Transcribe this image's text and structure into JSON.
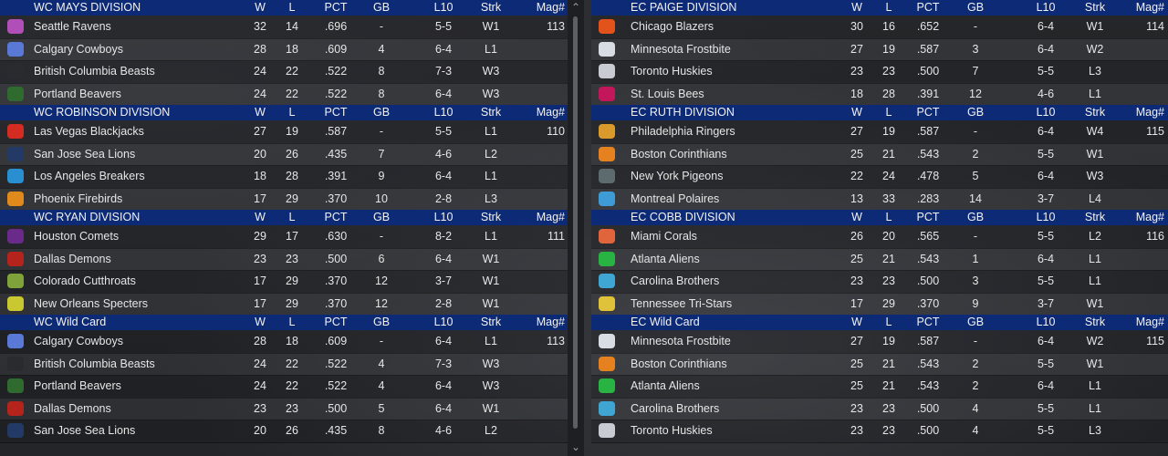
{
  "column_headers": {
    "w": "W",
    "l": "L",
    "pct": "PCT",
    "gb": "GB",
    "l10": "L10",
    "strk": "Strk",
    "mag": "Mag#"
  },
  "left": [
    {
      "division": "WC MAYS DIVISION",
      "teams": [
        {
          "name": "Seattle Ravens",
          "logo_icon": "ravens-logo-icon",
          "logo_color": "#b04fb8",
          "w": "32",
          "l": "14",
          "pct": ".696",
          "gb": "-",
          "l10": "5-5",
          "strk": "W1",
          "mag": "113"
        },
        {
          "name": "Calgary Cowboys",
          "logo_icon": "cowboy-hat-logo-icon",
          "logo_color": "#5a79d6",
          "w": "28",
          "l": "18",
          "pct": ".609",
          "gb": "4",
          "l10": "6-4",
          "strk": "L1",
          "mag": ""
        },
        {
          "name": "British Columbia Beasts",
          "logo_icon": "beasts-logo-icon",
          "logo_color": "#2a2b2e",
          "w": "24",
          "l": "22",
          "pct": ".522",
          "gb": "8",
          "l10": "7-3",
          "strk": "W3",
          "mag": ""
        },
        {
          "name": "Portland Beavers",
          "logo_icon": "beaver-logo-icon",
          "logo_color": "#2f6b2f",
          "w": "24",
          "l": "22",
          "pct": ".522",
          "gb": "8",
          "l10": "6-4",
          "strk": "W3",
          "mag": ""
        }
      ]
    },
    {
      "division": "WC ROBINSON DIVISION",
      "teams": [
        {
          "name": "Las Vegas Blackjacks",
          "logo_icon": "spade-logo-icon",
          "logo_color": "#d42b22",
          "w": "27",
          "l": "19",
          "pct": ".587",
          "gb": "-",
          "l10": "5-5",
          "strk": "L1",
          "mag": "110"
        },
        {
          "name": "San Jose Sea Lions",
          "logo_icon": "sea-lion-logo-icon",
          "logo_color": "#233a66",
          "w": "20",
          "l": "26",
          "pct": ".435",
          "gb": "7",
          "l10": "4-6",
          "strk": "L2",
          "mag": ""
        },
        {
          "name": "Los Angeles Breakers",
          "logo_icon": "wave-logo-icon",
          "logo_color": "#2a8fd0",
          "w": "18",
          "l": "28",
          "pct": ".391",
          "gb": "9",
          "l10": "6-4",
          "strk": "L1",
          "mag": ""
        },
        {
          "name": "Phoenix Firebirds",
          "logo_icon": "firebird-logo-icon",
          "logo_color": "#e08a1c",
          "w": "17",
          "l": "29",
          "pct": ".370",
          "gb": "10",
          "l10": "2-8",
          "strk": "L3",
          "mag": ""
        }
      ]
    },
    {
      "division": "WC RYAN DIVISION",
      "teams": [
        {
          "name": "Houston Comets",
          "logo_icon": "comet-logo-icon",
          "logo_color": "#6a2a8a",
          "w": "29",
          "l": "17",
          "pct": ".630",
          "gb": "-",
          "l10": "8-2",
          "strk": "L1",
          "mag": "111"
        },
        {
          "name": "Dallas Demons",
          "logo_icon": "demon-logo-icon",
          "logo_color": "#b5241c",
          "w": "23",
          "l": "23",
          "pct": ".500",
          "gb": "6",
          "l10": "6-4",
          "strk": "W1",
          "mag": ""
        },
        {
          "name": "Colorado Cutthroats",
          "logo_icon": "fish-logo-icon",
          "logo_color": "#7fa33a",
          "w": "17",
          "l": "29",
          "pct": ".370",
          "gb": "12",
          "l10": "3-7",
          "strk": "W1",
          "mag": ""
        },
        {
          "name": "New Orleans Specters",
          "logo_icon": "skull-logo-icon",
          "logo_color": "#c9c830",
          "w": "17",
          "l": "29",
          "pct": ".370",
          "gb": "12",
          "l10": "2-8",
          "strk": "W1",
          "mag": ""
        }
      ]
    },
    {
      "division": "WC  Wild Card",
      "teams": [
        {
          "name": "Calgary Cowboys",
          "logo_icon": "cowboy-hat-logo-icon",
          "logo_color": "#5a79d6",
          "w": "28",
          "l": "18",
          "pct": ".609",
          "gb": "-",
          "l10": "6-4",
          "strk": "L1",
          "mag": "113"
        },
        {
          "name": "British Columbia Beasts",
          "logo_icon": "beasts-logo-icon",
          "logo_color": "#2a2b2e",
          "w": "24",
          "l": "22",
          "pct": ".522",
          "gb": "4",
          "l10": "7-3",
          "strk": "W3",
          "mag": ""
        },
        {
          "name": "Portland Beavers",
          "logo_icon": "beaver-logo-icon",
          "logo_color": "#2f6b2f",
          "w": "24",
          "l": "22",
          "pct": ".522",
          "gb": "4",
          "l10": "6-4",
          "strk": "W3",
          "mag": ""
        },
        {
          "name": "Dallas Demons",
          "logo_icon": "demon-logo-icon",
          "logo_color": "#b5241c",
          "w": "23",
          "l": "23",
          "pct": ".500",
          "gb": "5",
          "l10": "6-4",
          "strk": "W1",
          "mag": ""
        },
        {
          "name": "San Jose Sea Lions",
          "logo_icon": "sea-lion-logo-icon",
          "logo_color": "#233a66",
          "w": "20",
          "l": "26",
          "pct": ".435",
          "gb": "8",
          "l10": "4-6",
          "strk": "L2",
          "mag": ""
        }
      ]
    }
  ],
  "right": [
    {
      "division": "EC PAIGE DIVISION",
      "teams": [
        {
          "name": "Chicago Blazers",
          "logo_icon": "flame-logo-icon",
          "logo_color": "#e2521b",
          "w": "30",
          "l": "16",
          "pct": ".652",
          "gb": "-",
          "l10": "6-4",
          "strk": "W1",
          "mag": "114"
        },
        {
          "name": "Minnesota Frostbite",
          "logo_icon": "snowflake-logo-icon",
          "logo_color": "#d8dde4",
          "w": "27",
          "l": "19",
          "pct": ".587",
          "gb": "3",
          "l10": "6-4",
          "strk": "W2",
          "mag": ""
        },
        {
          "name": "Toronto Huskies",
          "logo_icon": "husky-logo-icon",
          "logo_color": "#c8ccd2",
          "w": "23",
          "l": "23",
          "pct": ".500",
          "gb": "7",
          "l10": "5-5",
          "strk": "L3",
          "mag": ""
        },
        {
          "name": "St. Louis Bees",
          "logo_icon": "bee-logo-icon",
          "logo_color": "#c2185b",
          "w": "18",
          "l": "28",
          "pct": ".391",
          "gb": "12",
          "l10": "4-6",
          "strk": "L1",
          "mag": ""
        }
      ]
    },
    {
      "division": "EC RUTH DIVISION",
      "teams": [
        {
          "name": "Philadelphia Ringers",
          "logo_icon": "bell-logo-icon",
          "logo_color": "#d99a2b",
          "w": "27",
          "l": "19",
          "pct": ".587",
          "gb": "-",
          "l10": "6-4",
          "strk": "W4",
          "mag": "115"
        },
        {
          "name": "Boston Corinthians",
          "logo_icon": "helmet-logo-icon",
          "logo_color": "#e5821f",
          "w": "25",
          "l": "21",
          "pct": ".543",
          "gb": "2",
          "l10": "5-5",
          "strk": "W1",
          "mag": ""
        },
        {
          "name": "New York Pigeons",
          "logo_icon": "pigeon-logo-icon",
          "logo_color": "#5d6b6e",
          "w": "22",
          "l": "24",
          "pct": ".478",
          "gb": "5",
          "l10": "6-4",
          "strk": "W3",
          "mag": ""
        },
        {
          "name": "Montreal Polaires",
          "logo_icon": "polar-bear-logo-icon",
          "logo_color": "#3f9bd6",
          "w": "13",
          "l": "33",
          "pct": ".283",
          "gb": "14",
          "l10": "3-7",
          "strk": "L4",
          "mag": ""
        }
      ]
    },
    {
      "division": "EC COBB DIVISION",
      "teams": [
        {
          "name": "Miami Corals",
          "logo_icon": "coral-logo-icon",
          "logo_color": "#e0643c",
          "w": "26",
          "l": "20",
          "pct": ".565",
          "gb": "-",
          "l10": "5-5",
          "strk": "L2",
          "mag": "116"
        },
        {
          "name": "Atlanta Aliens",
          "logo_icon": "alien-logo-icon",
          "logo_color": "#29b342",
          "w": "25",
          "l": "21",
          "pct": ".543",
          "gb": "1",
          "l10": "6-4",
          "strk": "L1",
          "mag": ""
        },
        {
          "name": "Carolina Brothers",
          "logo_icon": "carolina-logo-icon",
          "logo_color": "#3fa6d4",
          "w": "23",
          "l": "23",
          "pct": ".500",
          "gb": "3",
          "l10": "5-5",
          "strk": "L1",
          "mag": ""
        },
        {
          "name": "Tennessee Tri-Stars",
          "logo_icon": "tri-stars-logo-icon",
          "logo_color": "#e0c13a",
          "w": "17",
          "l": "29",
          "pct": ".370",
          "gb": "9",
          "l10": "3-7",
          "strk": "W1",
          "mag": ""
        }
      ]
    },
    {
      "division": "EC  Wild Card",
      "teams": [
        {
          "name": "Minnesota Frostbite",
          "logo_icon": "snowflake-logo-icon",
          "logo_color": "#d8dde4",
          "w": "27",
          "l": "19",
          "pct": ".587",
          "gb": "-",
          "l10": "6-4",
          "strk": "W2",
          "mag": "115"
        },
        {
          "name": "Boston Corinthians",
          "logo_icon": "helmet-logo-icon",
          "logo_color": "#e5821f",
          "w": "25",
          "l": "21",
          "pct": ".543",
          "gb": "2",
          "l10": "5-5",
          "strk": "W1",
          "mag": ""
        },
        {
          "name": "Atlanta Aliens",
          "logo_icon": "alien-logo-icon",
          "logo_color": "#29b342",
          "w": "25",
          "l": "21",
          "pct": ".543",
          "gb": "2",
          "l10": "6-4",
          "strk": "L1",
          "mag": ""
        },
        {
          "name": "Carolina Brothers",
          "logo_icon": "carolina-logo-icon",
          "logo_color": "#3fa6d4",
          "w": "23",
          "l": "23",
          "pct": ".500",
          "gb": "4",
          "l10": "5-5",
          "strk": "L1",
          "mag": ""
        },
        {
          "name": "Toronto Huskies",
          "logo_icon": "husky-logo-icon",
          "logo_color": "#c8ccd2",
          "w": "23",
          "l": "23",
          "pct": ".500",
          "gb": "4",
          "l10": "5-5",
          "strk": "L3",
          "mag": ""
        }
      ]
    }
  ],
  "scrollbar": {
    "up_icon": "chevron-up-icon",
    "down_icon": "chevron-down-icon",
    "up_glyph": "⌃",
    "down_glyph": "⌄"
  }
}
